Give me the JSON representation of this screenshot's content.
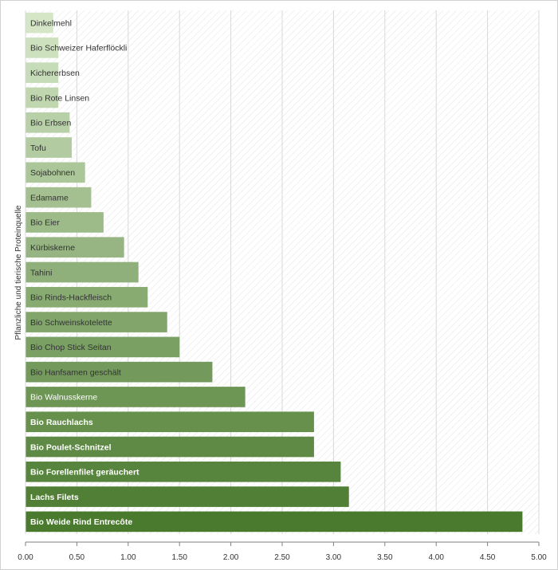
{
  "chart_data": {
    "type": "bar",
    "orientation": "horizontal",
    "ylabel": "Pflanzliche und tierische Proteinquelle",
    "xlabel": "",
    "xlim": [
      0,
      5
    ],
    "xticks": [
      "0.00",
      "0.50",
      "1.00",
      "1.50",
      "2.00",
      "2.50",
      "3.00",
      "3.50",
      "4.00",
      "4.50",
      "5.00"
    ],
    "grid": true,
    "categories": [
      "Dinkelmehl",
      "Bio Schweizer Haferflöckli",
      "Kichererbsen",
      "Bio Rote Linsen",
      "Bio Erbsen",
      "Tofu",
      "Sojabohnen",
      "Edamame",
      "Bio Eier",
      "Kürbiskerne",
      "Tahini",
      "Bio Rinds-Hackfleisch",
      "Bio Schweinskotelette",
      "Bio Chop Stick Seitan",
      "Bio Hanfsamen geschält",
      "Bio Walnusskerne",
      "Bio Rauchlachs",
      "Bio Poulet-Schnitzel",
      "Bio Forellenfilet geräuchert",
      "Lachs Filets",
      "Bio Weide Rind Entrecôte"
    ],
    "values": [
      0.27,
      0.32,
      0.32,
      0.32,
      0.43,
      0.45,
      0.58,
      0.64,
      0.76,
      0.96,
      1.1,
      1.19,
      1.38,
      1.5,
      1.82,
      2.14,
      2.81,
      2.81,
      3.07,
      3.15,
      4.84
    ],
    "colors": {
      "light": "#d4e6c6",
      "dark": "#4a7a2e",
      "grid": "#d9d9d9",
      "axis": "#7f7f7f",
      "hatch": "#e6e6e6"
    }
  }
}
